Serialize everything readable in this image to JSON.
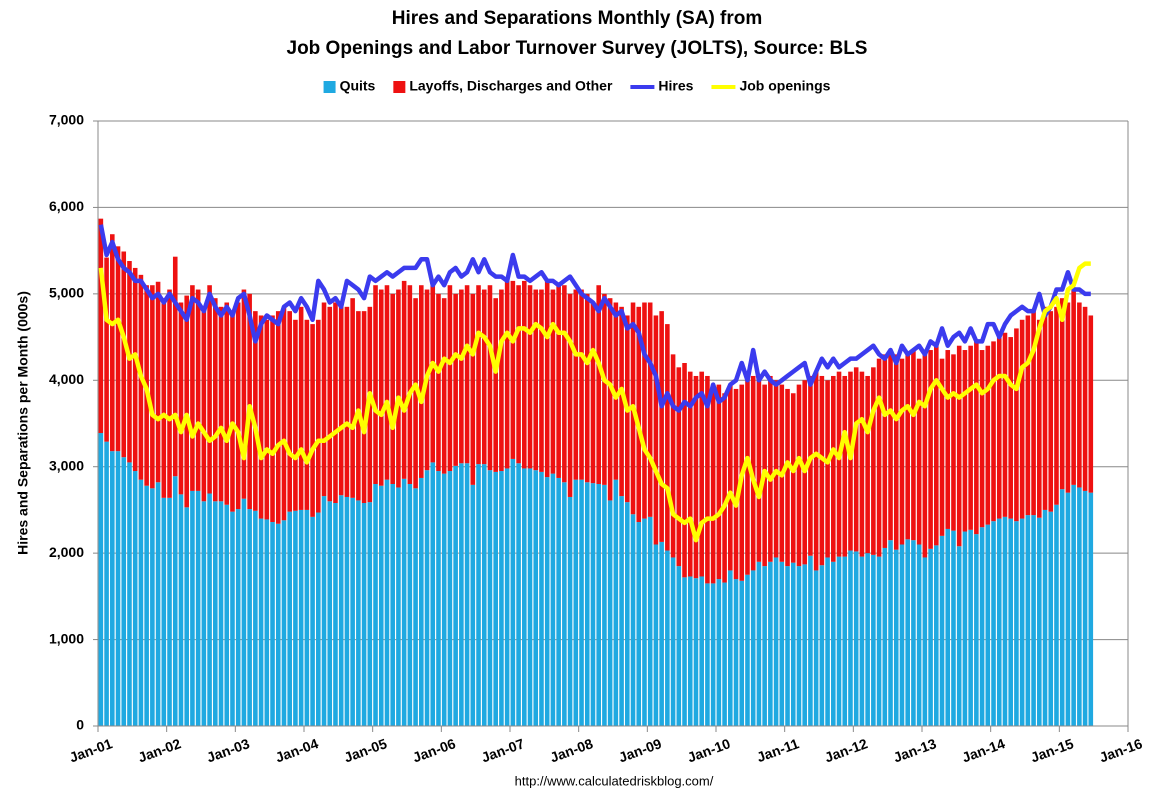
{
  "chart_data": {
    "type": "bar",
    "stacked": true,
    "title": "Hires and Separations Monthly (SA) from",
    "subtitle": "Job Openings and Labor Turnover Survey (JOLTS), Source: BLS",
    "y_label": "Hires and Separations per Month (000s)",
    "source": "http://www.calculatedriskblog.com/",
    "legend": "top",
    "grid": true,
    "ylim": [
      0,
      7000
    ],
    "yticks": [
      0,
      {
        "value": 1000,
        "label": "1,000"
      },
      {
        "value": 2000,
        "label": "2,000"
      },
      {
        "value": 3000,
        "label": "3,000"
      },
      {
        "value": 4000,
        "label": "4,000"
      },
      {
        "value": 5000,
        "label": "5,000"
      },
      {
        "value": 6000,
        "label": "6,000"
      },
      {
        "value": 7000,
        "label": "7,000"
      }
    ],
    "xlim": [
      "2001-01",
      "2016-01"
    ],
    "xticks": [
      {
        "value": "2001-01",
        "label": "Jan-01"
      },
      {
        "value": "2002-01",
        "label": "Jan-02"
      },
      {
        "value": "2003-01",
        "label": "Jan-03"
      },
      {
        "value": "2004-01",
        "label": "Jan-04"
      },
      {
        "value": "2005-01",
        "label": "Jan-05"
      },
      {
        "value": "2006-01",
        "label": "Jan-06"
      },
      {
        "value": "2007-01",
        "label": "Jan-07"
      },
      {
        "value": "2008-01",
        "label": "Jan-08"
      },
      {
        "value": "2009-01",
        "label": "Jan-09"
      },
      {
        "value": "2010-01",
        "label": "Jan-10"
      },
      {
        "value": "2011-01",
        "label": "Jan-11"
      },
      {
        "value": "2012-01",
        "label": "Jan-12"
      },
      {
        "value": "2013-01",
        "label": "Jan-13"
      },
      {
        "value": "2014-01",
        "label": "Jan-14"
      },
      {
        "value": "2015-01",
        "label": "Jan-15"
      },
      {
        "value": "2016-01",
        "label": "Jan-16"
      }
    ],
    "x": [
      "2001-01",
      "2001-02",
      "2001-03",
      "2001-04",
      "2001-05",
      "2001-06",
      "2001-07",
      "2001-08",
      "2001-09",
      "2001-10",
      "2001-11",
      "2001-12",
      "2002-01",
      "2002-02",
      "2002-03",
      "2002-04",
      "2002-05",
      "2002-06",
      "2002-07",
      "2002-08",
      "2002-09",
      "2002-10",
      "2002-11",
      "2002-12",
      "2003-01",
      "2003-02",
      "2003-03",
      "2003-04",
      "2003-05",
      "2003-06",
      "2003-07",
      "2003-08",
      "2003-09",
      "2003-10",
      "2003-11",
      "2003-12",
      "2004-01",
      "2004-02",
      "2004-03",
      "2004-04",
      "2004-05",
      "2004-06",
      "2004-07",
      "2004-08",
      "2004-09",
      "2004-10",
      "2004-11",
      "2004-12",
      "2005-01",
      "2005-02",
      "2005-03",
      "2005-04",
      "2005-05",
      "2005-06",
      "2005-07",
      "2005-08",
      "2005-09",
      "2005-10",
      "2005-11",
      "2005-12",
      "2006-01",
      "2006-02",
      "2006-03",
      "2006-04",
      "2006-05",
      "2006-06",
      "2006-07",
      "2006-08",
      "2006-09",
      "2006-10",
      "2006-11",
      "2006-12",
      "2007-01",
      "2007-02",
      "2007-03",
      "2007-04",
      "2007-05",
      "2007-06",
      "2007-07",
      "2007-08",
      "2007-09",
      "2007-10",
      "2007-11",
      "2007-12",
      "2008-01",
      "2008-02",
      "2008-03",
      "2008-04",
      "2008-05",
      "2008-06",
      "2008-07",
      "2008-08",
      "2008-09",
      "2008-10",
      "2008-11",
      "2008-12",
      "2009-01",
      "2009-02",
      "2009-03",
      "2009-04",
      "2009-05",
      "2009-06",
      "2009-07",
      "2009-08",
      "2009-09",
      "2009-10",
      "2009-11",
      "2009-12",
      "2010-01",
      "2010-02",
      "2010-03",
      "2010-04",
      "2010-05",
      "2010-06",
      "2010-07",
      "2010-08",
      "2010-09",
      "2010-10",
      "2010-11",
      "2010-12",
      "2011-01",
      "2011-02",
      "2011-03",
      "2011-04",
      "2011-05",
      "2011-06",
      "2011-07",
      "2011-08",
      "2011-09",
      "2011-10",
      "2011-11",
      "2011-12",
      "2012-01",
      "2012-02",
      "2012-03",
      "2012-04",
      "2012-05",
      "2012-06",
      "2012-07",
      "2012-08",
      "2012-09",
      "2012-10",
      "2012-11",
      "2012-12",
      "2013-01",
      "2013-02",
      "2013-03",
      "2013-04",
      "2013-05",
      "2013-06",
      "2013-07",
      "2013-08",
      "2013-09",
      "2013-10",
      "2013-11",
      "2013-12",
      "2014-01",
      "2014-02",
      "2014-03",
      "2014-04",
      "2014-05",
      "2014-06",
      "2014-07",
      "2014-08",
      "2014-09",
      "2014-10",
      "2014-11",
      "2014-12",
      "2015-01",
      "2015-02",
      "2015-03",
      "2015-04",
      "2015-05",
      "2015-06"
    ],
    "series": [
      {
        "name": "Quits",
        "type": "bar",
        "color": "#1fa9e1",
        "values": [
          3390,
          3290,
          3180,
          3180,
          3110,
          3050,
          2950,
          2850,
          2780,
          2750,
          2820,
          2640,
          2640,
          2890,
          2680,
          2530,
          2720,
          2720,
          2600,
          2690,
          2600,
          2600,
          2560,
          2480,
          2510,
          2630,
          2510,
          2490,
          2400,
          2390,
          2360,
          2340,
          2380,
          2480,
          2490,
          2500,
          2500,
          2420,
          2470,
          2660,
          2600,
          2580,
          2670,
          2650,
          2640,
          2610,
          2580,
          2590,
          2800,
          2780,
          2850,
          2800,
          2760,
          2860,
          2800,
          2750,
          2870,
          2960,
          3050,
          2950,
          2920,
          2950,
          3010,
          3040,
          3040,
          2790,
          3030,
          3030,
          2960,
          2940,
          2950,
          2980,
          3090,
          3040,
          2980,
          2980,
          2960,
          2940,
          2880,
          2920,
          2870,
          2820,
          2650,
          2850,
          2850,
          2820,
          2810,
          2800,
          2790,
          2610,
          2850,
          2660,
          2590,
          2450,
          2360,
          2400,
          2420,
          2100,
          2130,
          2030,
          1950,
          1850,
          1720,
          1730,
          1710,
          1730,
          1650,
          1650,
          1700,
          1660,
          1800,
          1700,
          1680,
          1750,
          1800,
          1900,
          1850,
          1900,
          1950,
          1900,
          1850,
          1890,
          1850,
          1870,
          1970,
          1800,
          1860,
          1950,
          1900,
          1960,
          1960,
          2030,
          2020,
          1960,
          2000,
          1980,
          1960,
          2060,
          2150,
          2040,
          2100,
          2160,
          2150,
          2100,
          1950,
          2050,
          2090,
          2200,
          2280,
          2260,
          2080,
          2250,
          2270,
          2220,
          2300,
          2330,
          2370,
          2400,
          2420,
          2400,
          2370,
          2400,
          2440,
          2440,
          2410,
          2500,
          2480,
          2560,
          2740,
          2700,
          2790,
          2760,
          2720,
          2700
        ]
      },
      {
        "name": "Layoffs, Discharges and Other",
        "type": "bar",
        "color": "#ee1111",
        "values": [
          2480,
          2130,
          2510,
          2370,
          2380,
          2330,
          2350,
          2370,
          2320,
          2350,
          2320,
          2310,
          2410,
          2540,
          2220,
          2450,
          2380,
          2330,
          2250,
          2410,
          2350,
          2250,
          2340,
          2320,
          2390,
          2420,
          2490,
          2310,
          2350,
          2310,
          2390,
          2460,
          2470,
          2320,
          2210,
          2350,
          2200,
          2230,
          2230,
          2240,
          2250,
          2320,
          2230,
          2200,
          2310,
          2190,
          2220,
          2260,
          2300,
          2270,
          2250,
          2200,
          2290,
          2290,
          2300,
          2200,
          2230,
          2090,
          2050,
          2050,
          2030,
          2150,
          1990,
          2010,
          2060,
          2210,
          2070,
          2020,
          2140,
          2010,
          2100,
          2170,
          2060,
          2060,
          2170,
          2120,
          2090,
          2110,
          2270,
          2130,
          2230,
          2280,
          2350,
          2200,
          2200,
          2180,
          2090,
          2300,
          2210,
          2340,
          2050,
          2190,
          2160,
          2450,
          2490,
          2500,
          2480,
          2650,
          2670,
          2620,
          2350,
          2300,
          2480,
          2370,
          2340,
          2370,
          2400,
          2300,
          2250,
          2190,
          2150,
          2200,
          2270,
          2350,
          2250,
          2100,
          2100,
          2150,
          2050,
          2050,
          2050,
          1960,
          2100,
          2130,
          2080,
          2300,
          2190,
          2050,
          2150,
          2140,
          2090,
          2070,
          2130,
          2140,
          2050,
          2170,
          2290,
          2240,
          2200,
          2260,
          2150,
          2140,
          2200,
          2150,
          2350,
          2300,
          2310,
          2050,
          2070,
          2040,
          2320,
          2100,
          2130,
          2230,
          2050,
          2070,
          2080,
          2100,
          2130,
          2100,
          2230,
          2300,
          2310,
          2360,
          2290,
          2350,
          2320,
          2290,
          2210,
          2200,
          2260,
          2140,
          2130,
          2050
        ]
      },
      {
        "name": "Hires",
        "type": "line",
        "color": "#3b3bee",
        "values": [
          5800,
          5450,
          5600,
          5400,
          5300,
          5250,
          5150,
          5150,
          5050,
          4950,
          5000,
          4900,
          5000,
          4900,
          4800,
          4700,
          4950,
          4900,
          4800,
          5000,
          4850,
          4750,
          4850,
          4750,
          4950,
          5000,
          4750,
          4450,
          4650,
          4750,
          4700,
          4650,
          4850,
          4900,
          4800,
          4950,
          4850,
          4700,
          5150,
          5050,
          4900,
          4950,
          4850,
          5150,
          5100,
          5050,
          4950,
          5200,
          5150,
          5200,
          5250,
          5200,
          5250,
          5300,
          5300,
          5300,
          5400,
          5400,
          5100,
          5200,
          5100,
          5250,
          5300,
          5200,
          5250,
          5400,
          5250,
          5400,
          5250,
          5200,
          5200,
          5150,
          5450,
          5200,
          5200,
          5150,
          5200,
          5250,
          5150,
          5150,
          5100,
          5150,
          5200,
          5100,
          5000,
          4950,
          4900,
          4800,
          4950,
          4850,
          4750,
          4800,
          4600,
          4650,
          4550,
          4300,
          4200,
          4050,
          3700,
          3850,
          3700,
          3650,
          3750,
          3700,
          3800,
          3850,
          3700,
          3950,
          3750,
          3800,
          3950,
          4000,
          4200,
          4000,
          4350,
          4000,
          4100,
          4000,
          3950,
          4000,
          4050,
          4100,
          4150,
          4200,
          3950,
          4100,
          4250,
          4150,
          4250,
          4150,
          4200,
          4250,
          4250,
          4300,
          4350,
          4400,
          4300,
          4250,
          4350,
          4200,
          4400,
          4300,
          4350,
          4400,
          4300,
          4450,
          4400,
          4600,
          4400,
          4500,
          4550,
          4450,
          4600,
          4450,
          4450,
          4650,
          4650,
          4500,
          4650,
          4750,
          4800,
          4850,
          4800,
          4800,
          5000,
          4750,
          4850,
          5050,
          5050,
          5250,
          5050,
          5050,
          5000,
          5000
        ]
      },
      {
        "name": "Job openings",
        "type": "line",
        "color": "#ffff00",
        "values": [
          5300,
          4700,
          4650,
          4700,
          4500,
          4250,
          4300,
          4050,
          3900,
          3600,
          3550,
          3600,
          3550,
          3600,
          3400,
          3600,
          3350,
          3500,
          3400,
          3300,
          3350,
          3450,
          3300,
          3500,
          3400,
          3100,
          3700,
          3450,
          3100,
          3200,
          3150,
          3250,
          3300,
          3150,
          3100,
          3200,
          3050,
          3200,
          3300,
          3300,
          3350,
          3400,
          3450,
          3500,
          3450,
          3650,
          3400,
          3850,
          3650,
          3600,
          3750,
          3450,
          3800,
          3650,
          3850,
          3950,
          3750,
          4050,
          4200,
          4100,
          4250,
          4200,
          4300,
          4250,
          4400,
          4300,
          4550,
          4500,
          4400,
          4100,
          4450,
          4550,
          4450,
          4600,
          4600,
          4550,
          4650,
          4600,
          4500,
          4650,
          4550,
          4550,
          4450,
          4300,
          4300,
          4200,
          4350,
          4200,
          4000,
          3950,
          3800,
          3900,
          3650,
          3700,
          3450,
          3200,
          3100,
          2950,
          2800,
          2750,
          2450,
          2400,
          2350,
          2400,
          2150,
          2350,
          2400,
          2400,
          2450,
          2550,
          2700,
          2550,
          2900,
          3100,
          2850,
          2650,
          2950,
          2850,
          2950,
          2900,
          3050,
          2950,
          3100,
          2950,
          3100,
          3150,
          3100,
          3050,
          3200,
          3100,
          3400,
          3100,
          3500,
          3550,
          3400,
          3650,
          3800,
          3600,
          3650,
          3550,
          3650,
          3700,
          3600,
          3750,
          3700,
          3900,
          4000,
          3900,
          3800,
          3850,
          3800,
          3850,
          3900,
          3950,
          3850,
          3900,
          4000,
          4050,
          4050,
          3950,
          3900,
          4150,
          4200,
          4350,
          4600,
          4800,
          4850,
          4950,
          4700,
          5050,
          5100,
          5300,
          5350,
          5350
        ]
      }
    ]
  }
}
